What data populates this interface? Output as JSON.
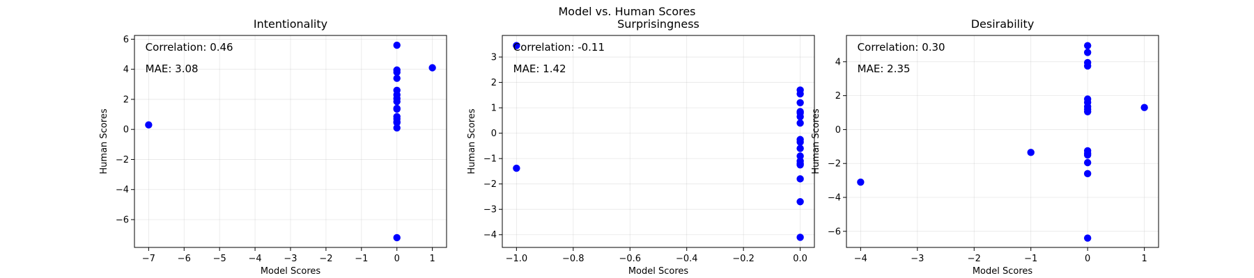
{
  "figure": {
    "suptitle": "Model vs. Human Scores"
  },
  "chart_data": [
    {
      "type": "scatter",
      "title": "Intentionality",
      "xlabel": "Model Scores",
      "ylabel": "Human Scores",
      "xlim": [
        -7.4,
        1.4
      ],
      "ylim": [
        -7.85,
        6.25
      ],
      "xticks": [
        -7,
        -6,
        -5,
        -4,
        -3,
        -2,
        -1,
        0,
        1
      ],
      "yticks": [
        -6,
        -4,
        -2,
        0,
        2,
        4,
        6
      ],
      "grid": true,
      "marker_color": "#0000ff",
      "annotations": [
        "Correlation: 0.46",
        "MAE: 3.08"
      ],
      "series": [
        {
          "x": [
            -7,
            0,
            0,
            0,
            0,
            0,
            0,
            0,
            0,
            0,
            0,
            0,
            0,
            0,
            0,
            0,
            0,
            1
          ],
          "y": [
            0.3,
            5.6,
            3.95,
            3.8,
            3.4,
            2.6,
            2.3,
            2.05,
            1.85,
            1.4,
            1.35,
            0.85,
            0.7,
            0.5,
            0.45,
            0.1,
            -7.2,
            4.1
          ]
        }
      ]
    },
    {
      "type": "scatter",
      "title": "Surprisingness",
      "xlabel": "Model Scores",
      "ylabel": "Human Scores",
      "xlim": [
        -1.05,
        0.05
      ],
      "ylim": [
        -4.5,
        3.85
      ],
      "xticks": [
        -1.0,
        -0.8,
        -0.6,
        -0.4,
        -0.2,
        0.0
      ],
      "tick_labels_x": [
        "−1.0",
        "−0.8",
        "−0.6",
        "−0.4",
        "−0.2",
        "0.0"
      ],
      "yticks": [
        -4,
        -3,
        -2,
        -1,
        0,
        1,
        2,
        3
      ],
      "grid": true,
      "marker_color": "#0000ff",
      "annotations": [
        "Correlation: -0.11",
        "MAE: 1.42"
      ],
      "series": [
        {
          "x": [
            -1,
            -1,
            0,
            0,
            0,
            0,
            0,
            0,
            0,
            0,
            0,
            0,
            0,
            0,
            0,
            0,
            0,
            0,
            0
          ],
          "y": [
            3.45,
            -1.38,
            1.7,
            1.55,
            1.2,
            0.8,
            0.65,
            0.4,
            -0.25,
            -0.35,
            -0.6,
            -0.9,
            -1.1,
            -1.2,
            -1.25,
            -1.8,
            -2.7,
            -4.1,
            0.85
          ]
        }
      ]
    },
    {
      "type": "scatter",
      "title": "Desirability",
      "xlabel": "Model Scores",
      "ylabel": "Human Scores",
      "xlim": [
        -4.25,
        1.25
      ],
      "ylim": [
        -6.95,
        5.55
      ],
      "xticks": [
        -4,
        -3,
        -2,
        -1,
        0,
        1
      ],
      "yticks": [
        -6,
        -4,
        -2,
        0,
        2,
        4
      ],
      "grid": true,
      "marker_color": "#0000ff",
      "annotations": [
        "Correlation: 0.30",
        "MAE: 2.35"
      ],
      "series": [
        {
          "x": [
            -4,
            -1,
            0,
            0,
            0,
            0,
            0,
            0,
            0,
            0,
            0,
            0,
            0,
            0,
            0,
            0,
            0,
            1
          ],
          "y": [
            -3.1,
            -1.35,
            4.95,
            4.55,
            3.95,
            3.75,
            1.8,
            1.6,
            1.35,
            1.05,
            -1.25,
            -1.4,
            -1.5,
            -1.95,
            -2.6,
            -6.4,
            1.2,
            1.3
          ]
        }
      ]
    }
  ]
}
